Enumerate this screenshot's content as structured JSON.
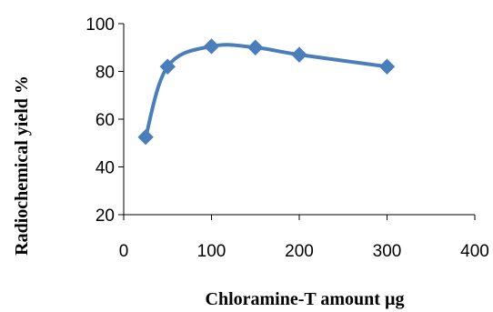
{
  "chart_data": {
    "type": "line",
    "title": "",
    "xlabel": "Chloramine-T amount  µg",
    "ylabel": "Radiochemical yield  %",
    "xlim": [
      0,
      400
    ],
    "ylim": [
      20,
      100
    ],
    "xticks": [
      0,
      100,
      200,
      300,
      400
    ],
    "yticks": [
      20,
      40,
      60,
      80,
      100
    ],
    "xtick_labels": [
      "0",
      "100",
      "200",
      "300",
      "400"
    ],
    "ytick_labels": [
      "20",
      "40",
      "60",
      "80",
      "100"
    ],
    "grid": false,
    "legend": "none",
    "smoothed": true,
    "series": [
      {
        "color": "#4a7ebb",
        "marker": "diamond",
        "x": [
          25,
          50,
          100,
          150,
          200,
          300
        ],
        "y": [
          52.5,
          82,
          90.5,
          90,
          87,
          82
        ]
      }
    ]
  }
}
